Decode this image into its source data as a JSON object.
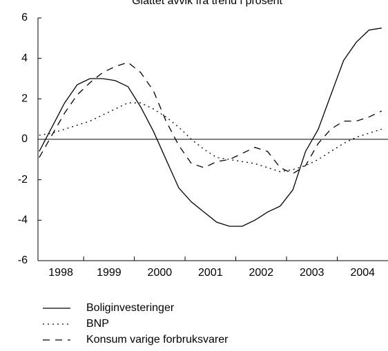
{
  "chart_data": {
    "type": "line",
    "title": "Glattet avvik fra trend i prosent",
    "x": [
      1998.125,
      1998.375,
      1998.625,
      1998.875,
      1999.125,
      1999.375,
      1999.625,
      1999.875,
      2000.125,
      2000.375,
      2000.625,
      2000.875,
      2001.125,
      2001.375,
      2001.625,
      2001.875,
      2002.125,
      2002.375,
      2002.625,
      2002.875,
      2003.125,
      2003.375,
      2003.625,
      2003.875,
      2004.125,
      2004.375,
      2004.625,
      2004.875
    ],
    "series": [
      {
        "name": "Boliginvesteringer",
        "color": "#000000",
        "dash": "solid",
        "values": [
          -0.6,
          0.6,
          1.8,
          2.7,
          3.0,
          3.0,
          2.9,
          2.6,
          1.6,
          0.4,
          -1.0,
          -2.4,
          -3.1,
          -3.6,
          -4.1,
          -4.3,
          -4.3,
          -4.0,
          -3.6,
          -3.3,
          -2.5,
          -0.6,
          0.5,
          2.2,
          3.9,
          4.8,
          5.4,
          5.5
        ]
      },
      {
        "name": "BNP",
        "color": "#000000",
        "dash": "dotted",
        "values": [
          0.2,
          0.3,
          0.5,
          0.7,
          0.9,
          1.2,
          1.5,
          1.8,
          1.8,
          1.5,
          1.1,
          0.6,
          0.0,
          -0.5,
          -0.9,
          -1.0,
          -1.1,
          -1.2,
          -1.4,
          -1.6,
          -1.5,
          -1.3,
          -1.0,
          -0.6,
          -0.2,
          0.1,
          0.3,
          0.5
        ]
      },
      {
        "name": "Konsum varige forbruksvarer",
        "color": "#000000",
        "dash": "dashed",
        "values": [
          -0.9,
          0.2,
          1.3,
          2.2,
          2.8,
          3.3,
          3.6,
          3.8,
          3.3,
          2.4,
          0.9,
          -0.3,
          -1.2,
          -1.4,
          -1.1,
          -1.0,
          -0.7,
          -0.4,
          -0.6,
          -1.4,
          -1.7,
          -1.3,
          -0.2,
          0.5,
          0.9,
          0.9,
          1.1,
          1.4
        ]
      }
    ],
    "xlim": [
      1998.1,
      2005.0
    ],
    "xticks": [
      {
        "value": 1998.55,
        "label": "1998"
      },
      {
        "value": 1999.5,
        "label": "1999"
      },
      {
        "value": 2000.5,
        "label": "2000"
      },
      {
        "value": 2001.5,
        "label": "2001"
      },
      {
        "value": 2002.5,
        "label": "2002"
      },
      {
        "value": 2003.5,
        "label": "2003"
      },
      {
        "value": 2004.5,
        "label": "2004"
      }
    ],
    "xtick_marks": [
      1999,
      2000,
      2001,
      2002,
      2003,
      2004
    ],
    "ylim": [
      -6,
      6
    ],
    "yticks": [
      -6,
      -4,
      -2,
      0,
      2,
      4,
      6
    ],
    "zero_line": true,
    "legend": "bottom-left"
  }
}
